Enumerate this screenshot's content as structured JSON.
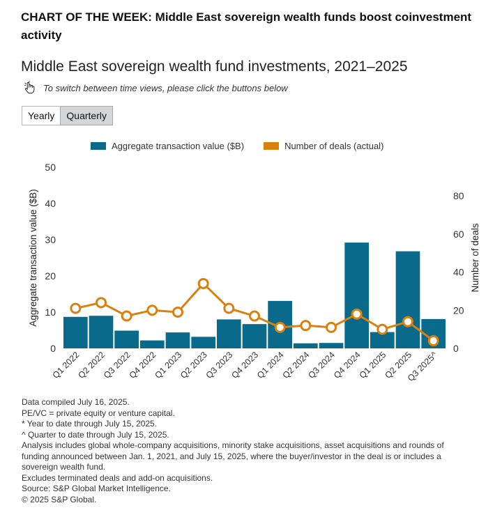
{
  "headline": "CHART OF THE WEEK: Middle East sovereign wealth funds boost coinvestment activity",
  "chart_title": "Middle East sovereign wealth fund investments, 2021–2025",
  "hint": "To switch between time views, please click the buttons below",
  "toggle": {
    "yearly": "Yearly",
    "quarterly": "Quarterly",
    "active": "quarterly"
  },
  "colors": {
    "bar": "#0a6a8c",
    "line": "#d9800f",
    "marker_fill": "#ffffff"
  },
  "chart_data": {
    "type": "bar",
    "categories": [
      "Q1 2022",
      "Q2 2022",
      "Q3 2022",
      "Q4 2022",
      "Q1 2023",
      "Q2 2023",
      "Q3 2023",
      "Q4 2023",
      "Q1 2024",
      "Q2 2024",
      "Q3 2024",
      "Q4 2024",
      "Q1 2025",
      "Q2 2025",
      "Q3 2025^"
    ],
    "series": [
      {
        "name": "Aggregate transaction value ($B)",
        "type": "bar",
        "axis": "left",
        "values": [
          8.7,
          9.0,
          4.9,
          2.2,
          4.4,
          3.2,
          8.0,
          6.7,
          13.1,
          1.4,
          1.5,
          29.2,
          4.5,
          26.8,
          8.1
        ]
      },
      {
        "name": "Number of deals (actual)",
        "type": "line",
        "axis": "right",
        "values": [
          21,
          24,
          17,
          20,
          19,
          34,
          21,
          17,
          11,
          12,
          11,
          18,
          10,
          14,
          4
        ]
      }
    ],
    "ylabel": "Aggregate transaction value ($B)",
    "y2label": "Number of deals",
    "ylim": [
      0,
      50
    ],
    "y2lim": [
      0,
      95
    ],
    "yticks": [
      "0",
      "10",
      "20",
      "30",
      "40",
      "50"
    ],
    "y2ticks": [
      "0",
      "20",
      "40",
      "60",
      "80"
    ],
    "grid": false
  },
  "footnotes": [
    "Data compiled July 16, 2025.",
    "PE/VC = private equity or venture capital.",
    "* Year to date through July 15, 2025.",
    "^ Quarter to date through July 15, 2025.",
    "Analysis includes global whole-company acquisitions, minority stake acquisitions, asset acquisitions and rounds of funding announced between Jan. 1, 2021, and July 15, 2025, where the buyer/investor in the deal is or includes a sovereign wealth fund.",
    "Excludes terminated deals and add-on acquisitions.",
    "Source: S&P Global Market Intelligence.",
    "© 2025 S&P Global."
  ]
}
